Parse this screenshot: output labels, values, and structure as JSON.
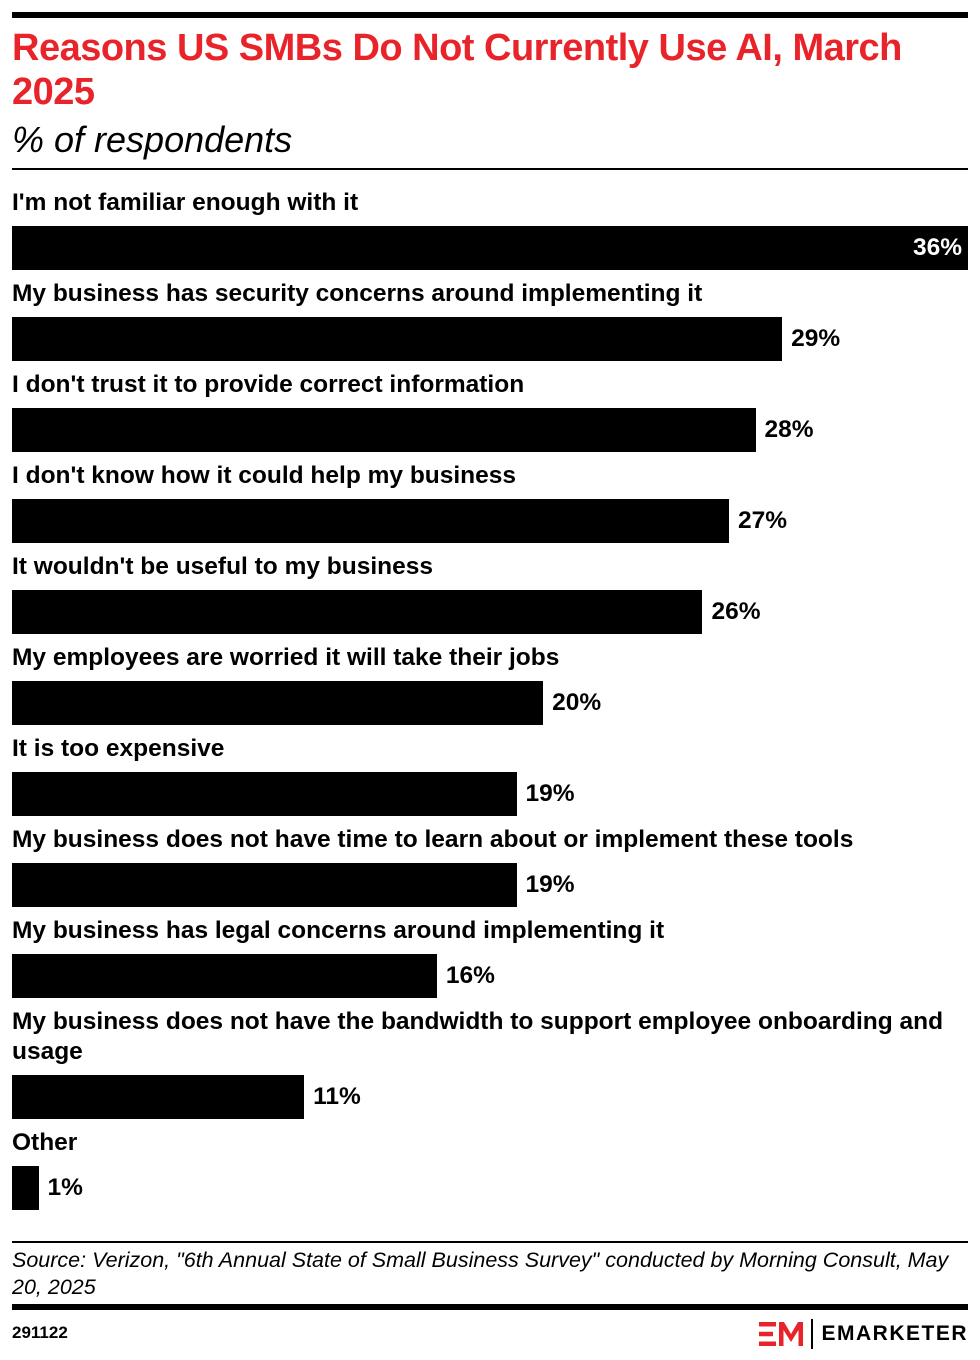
{
  "header": {
    "title": "Reasons US SMBs Do Not Currently Use AI, March 2025",
    "subtitle": "% of respondents"
  },
  "chart_data": {
    "type": "bar",
    "orientation": "horizontal",
    "title": "Reasons US SMBs Do Not Currently Use AI, March 2025",
    "subtitle": "% of respondents",
    "categories": [
      "I'm not familiar enough with it",
      "My business has security concerns around implementing it",
      "I don't trust it to provide correct information",
      "I don't know how it could help my business",
      "It wouldn't be useful to my business",
      "My employees are worried it will take their jobs",
      "It is too expensive",
      "My business does not have time to learn about or implement these tools",
      "My business has legal concerns around implementing it",
      "My business does not have the bandwidth to support employee onboarding and usage",
      "Other"
    ],
    "values": [
      36,
      29,
      28,
      27,
      26,
      20,
      19,
      19,
      16,
      11,
      1
    ],
    "value_labels": [
      "36%",
      "29%",
      "28%",
      "27%",
      "26%",
      "20%",
      "19%",
      "19%",
      "16%",
      "11%",
      "1%"
    ],
    "xlim": [
      0,
      36
    ],
    "grid": false,
    "legend": "none",
    "bar_color": "#000000"
  },
  "footer": {
    "source": "Source: Verizon, \"6th Annual State of Small Business Survey\" conducted by Morning Consult, May 20, 2025",
    "chart_id": "291122",
    "brand": "EMARKETER"
  },
  "colors": {
    "title": "#e8242a",
    "bar": "#000000",
    "logo_mark": "#e8242a"
  },
  "icons": {
    "logo": "emarketer-logo-icon"
  }
}
